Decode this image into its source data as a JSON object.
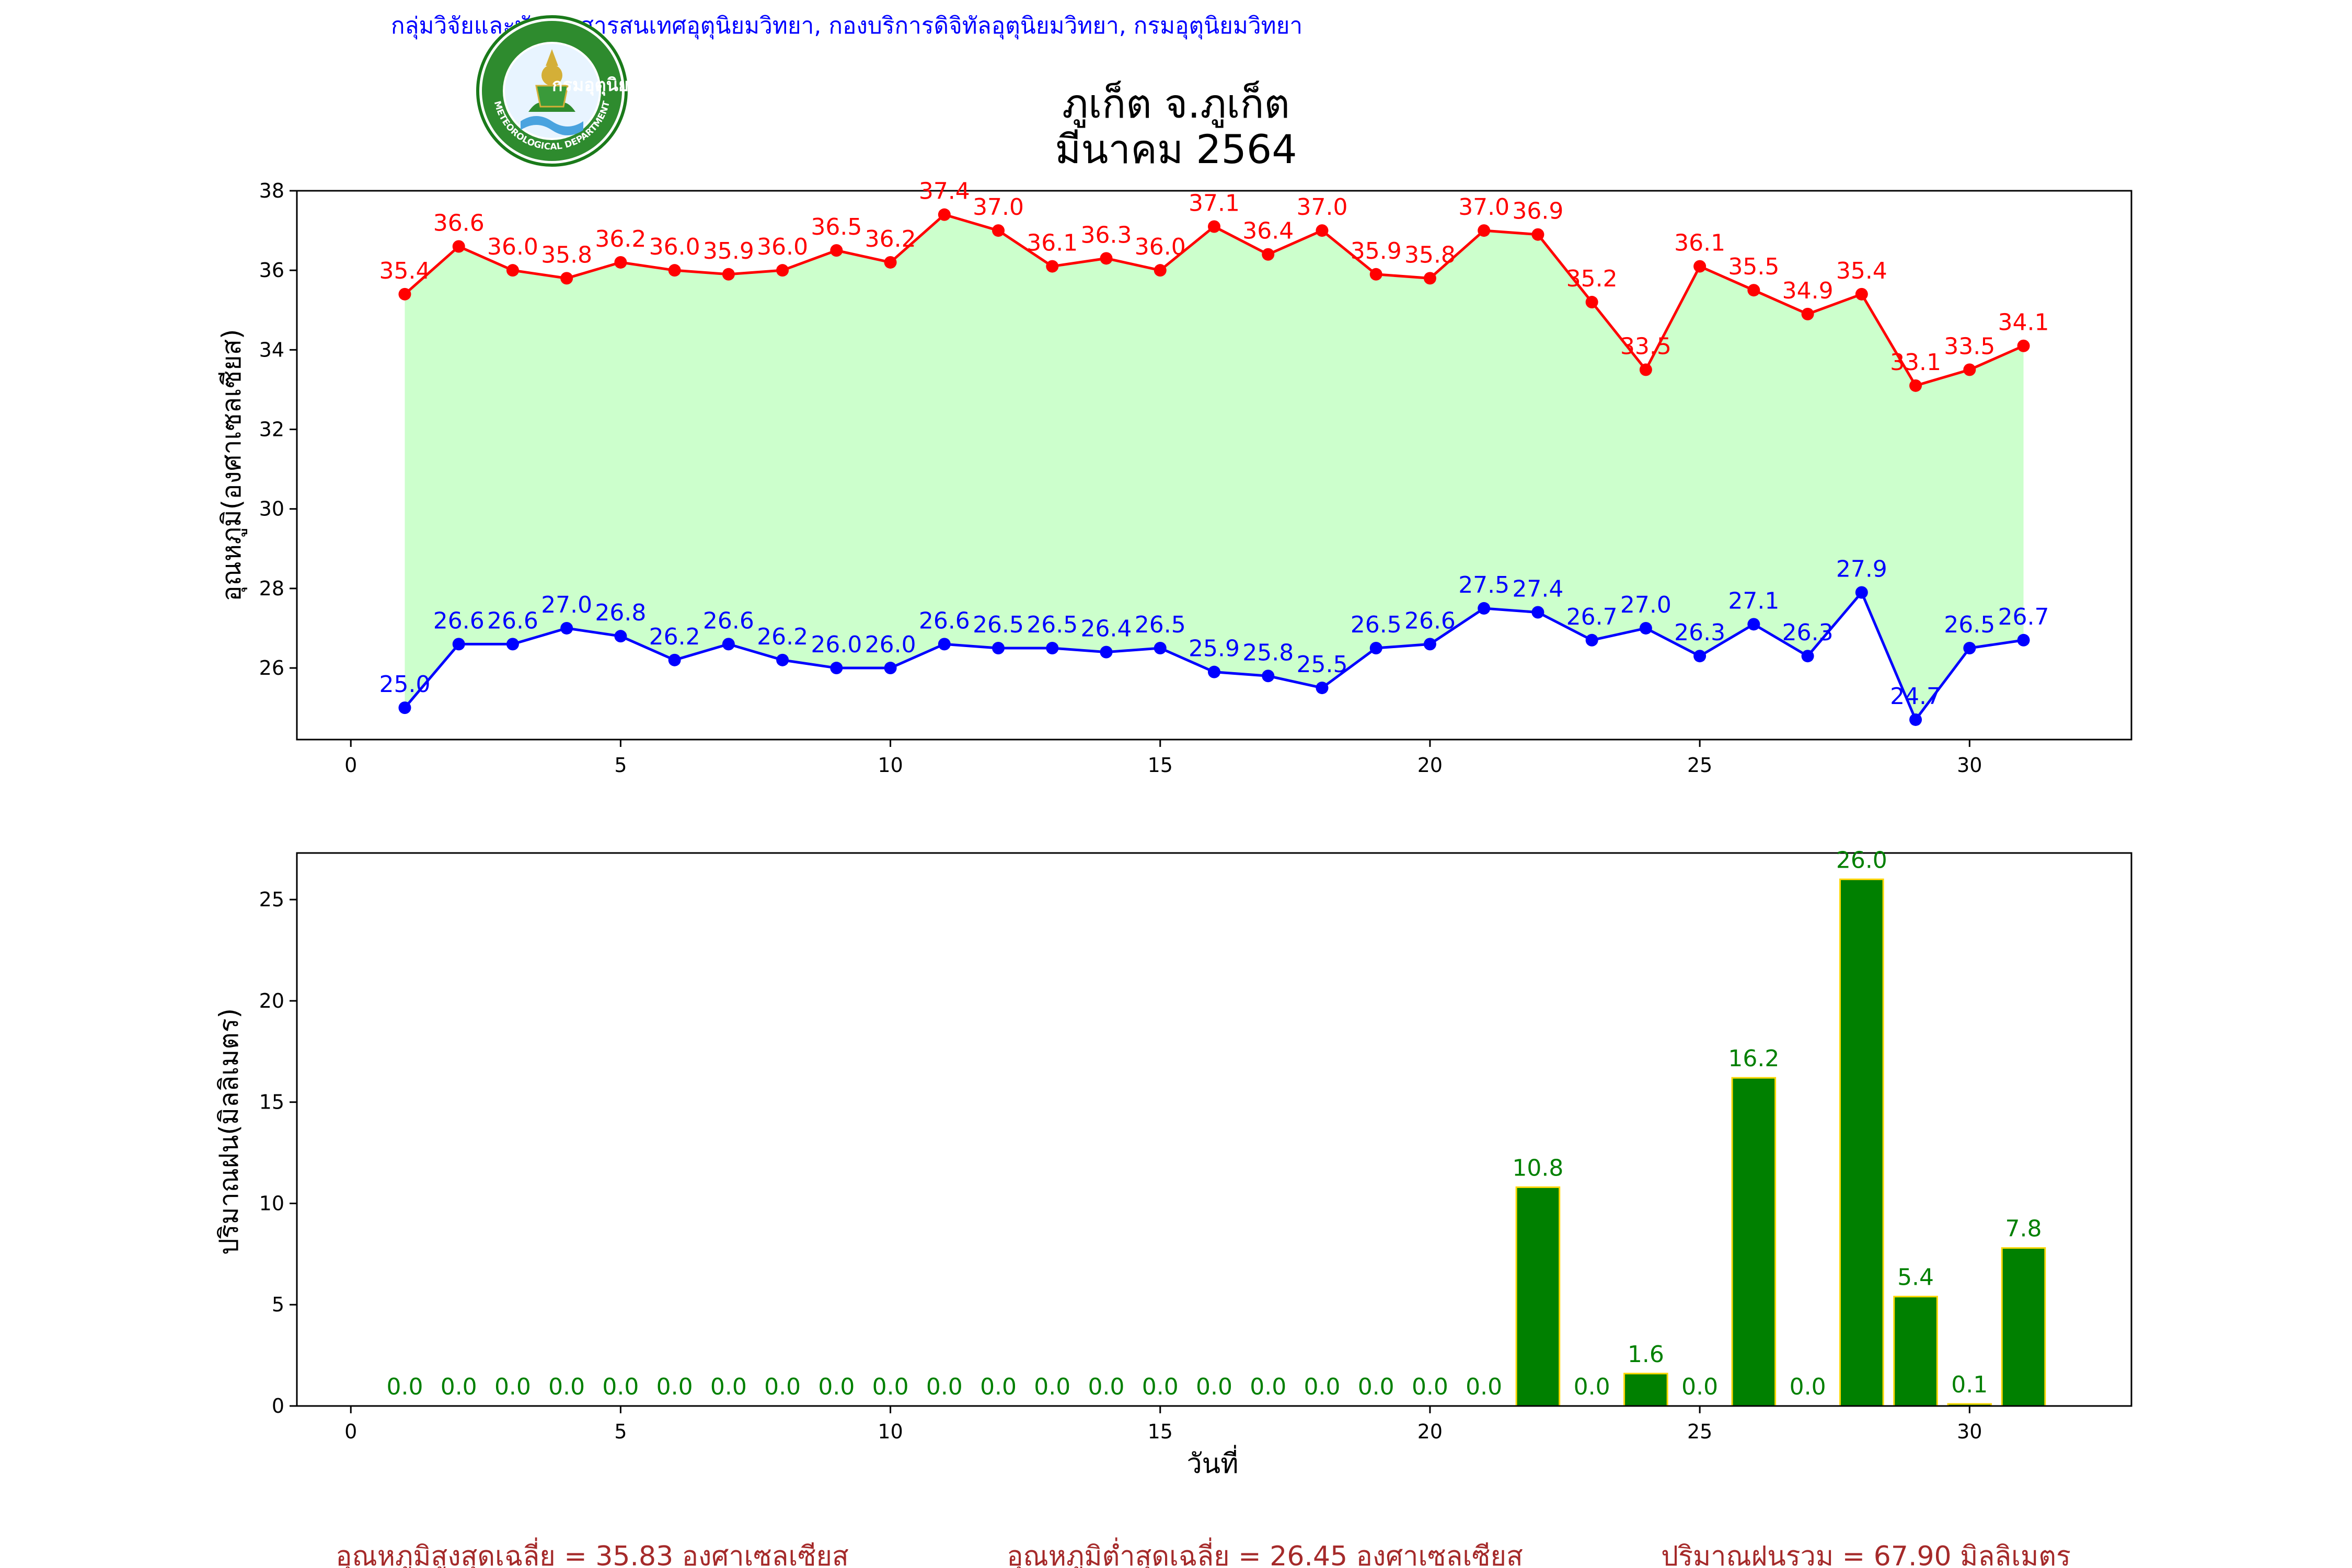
{
  "header": {
    "org_text": "กลุ่มวิจัยและพัฒนาสารสนเทศอุตุนิยมวิทยา, กองบริการดิจิทัลอุตุนิยมวิทยา, กรมอุตุนิยมวิทยา",
    "logo_top_text": "กรมอุตุนิยมวิทยา",
    "logo_bottom_text": "METEOROLOGICAL DEPARTMENT",
    "station": "ภูเก็ต จ.ภูเก็ต",
    "period": "มีนาคม 2564"
  },
  "colors": {
    "org_text": "#0000ff",
    "tmax": "#ff0000",
    "tmin": "#0000ff",
    "fill": "#ccffcc",
    "rain_bar": "#008000",
    "rain_edge": "#ffd700",
    "rain_label": "#008000",
    "summary": "#a52a2a"
  },
  "chart_data": [
    {
      "type": "line",
      "ylabel": "อุณหภูมิ(องศาเซลเซียส)",
      "xlim": [
        -1,
        33
      ],
      "ylim": [
        24.2,
        38
      ],
      "xticks": [
        0,
        5,
        10,
        15,
        20,
        25,
        30
      ],
      "yticks": [
        26,
        28,
        30,
        32,
        34,
        36,
        38
      ],
      "x": [
        1,
        2,
        3,
        4,
        5,
        6,
        7,
        8,
        9,
        10,
        11,
        12,
        13,
        14,
        15,
        16,
        17,
        18,
        19,
        20,
        21,
        22,
        23,
        24,
        25,
        26,
        27,
        28,
        29,
        30,
        31
      ],
      "series": [
        {
          "key": "tmax",
          "values": [
            35.4,
            36.6,
            36.0,
            35.8,
            36.2,
            36.0,
            35.9,
            36.0,
            36.5,
            36.2,
            37.4,
            37.0,
            36.1,
            36.3,
            36.0,
            37.1,
            36.4,
            37.0,
            35.9,
            35.8,
            37.0,
            36.9,
            35.2,
            33.5,
            36.1,
            35.5,
            34.9,
            35.4,
            33.1,
            33.5,
            34.1
          ]
        },
        {
          "key": "tmin",
          "values": [
            25.0,
            26.6,
            26.6,
            27.0,
            26.8,
            26.2,
            26.6,
            26.2,
            26.0,
            26.0,
            26.6,
            26.5,
            26.5,
            26.4,
            26.5,
            25.9,
            25.8,
            25.5,
            26.5,
            26.6,
            27.5,
            27.4,
            26.7,
            27.0,
            26.3,
            27.1,
            26.3,
            27.9,
            24.7,
            26.5,
            26.7
          ]
        }
      ],
      "fill_between": true,
      "grid": false
    },
    {
      "type": "bar",
      "ylabel": "ปริมาณฝน(มิลลิเมตร)",
      "xlabel": "วันที่",
      "xlim": [
        -1,
        33
      ],
      "ylim": [
        0,
        27.3
      ],
      "xticks": [
        0,
        5,
        10,
        15,
        20,
        25,
        30
      ],
      "yticks": [
        0,
        5,
        10,
        15,
        20,
        25
      ],
      "x": [
        1,
        2,
        3,
        4,
        5,
        6,
        7,
        8,
        9,
        10,
        11,
        12,
        13,
        14,
        15,
        16,
        17,
        18,
        19,
        20,
        21,
        22,
        23,
        24,
        25,
        26,
        27,
        28,
        29,
        30,
        31
      ],
      "values": [
        0.0,
        0.0,
        0.0,
        0.0,
        0.0,
        0.0,
        0.0,
        0.0,
        0.0,
        0.0,
        0.0,
        0.0,
        0.0,
        0.0,
        0.0,
        0.0,
        0.0,
        0.0,
        0.0,
        0.0,
        0.0,
        10.8,
        0.0,
        1.6,
        0.0,
        16.2,
        0.0,
        26.0,
        5.4,
        0.1,
        7.8
      ],
      "grid": false
    }
  ],
  "summary": {
    "avg_max": "อุณหภูมิสูงสุดเฉลี่ย = 35.83 องศาเซลเซียส",
    "avg_min": "อุณหภูมิต่ำสุดเฉลี่ย = 26.45 องศาเซลเซียส",
    "total_rain": "ปริมาณฝนรวม = 67.90 มิลลิเมตร"
  }
}
